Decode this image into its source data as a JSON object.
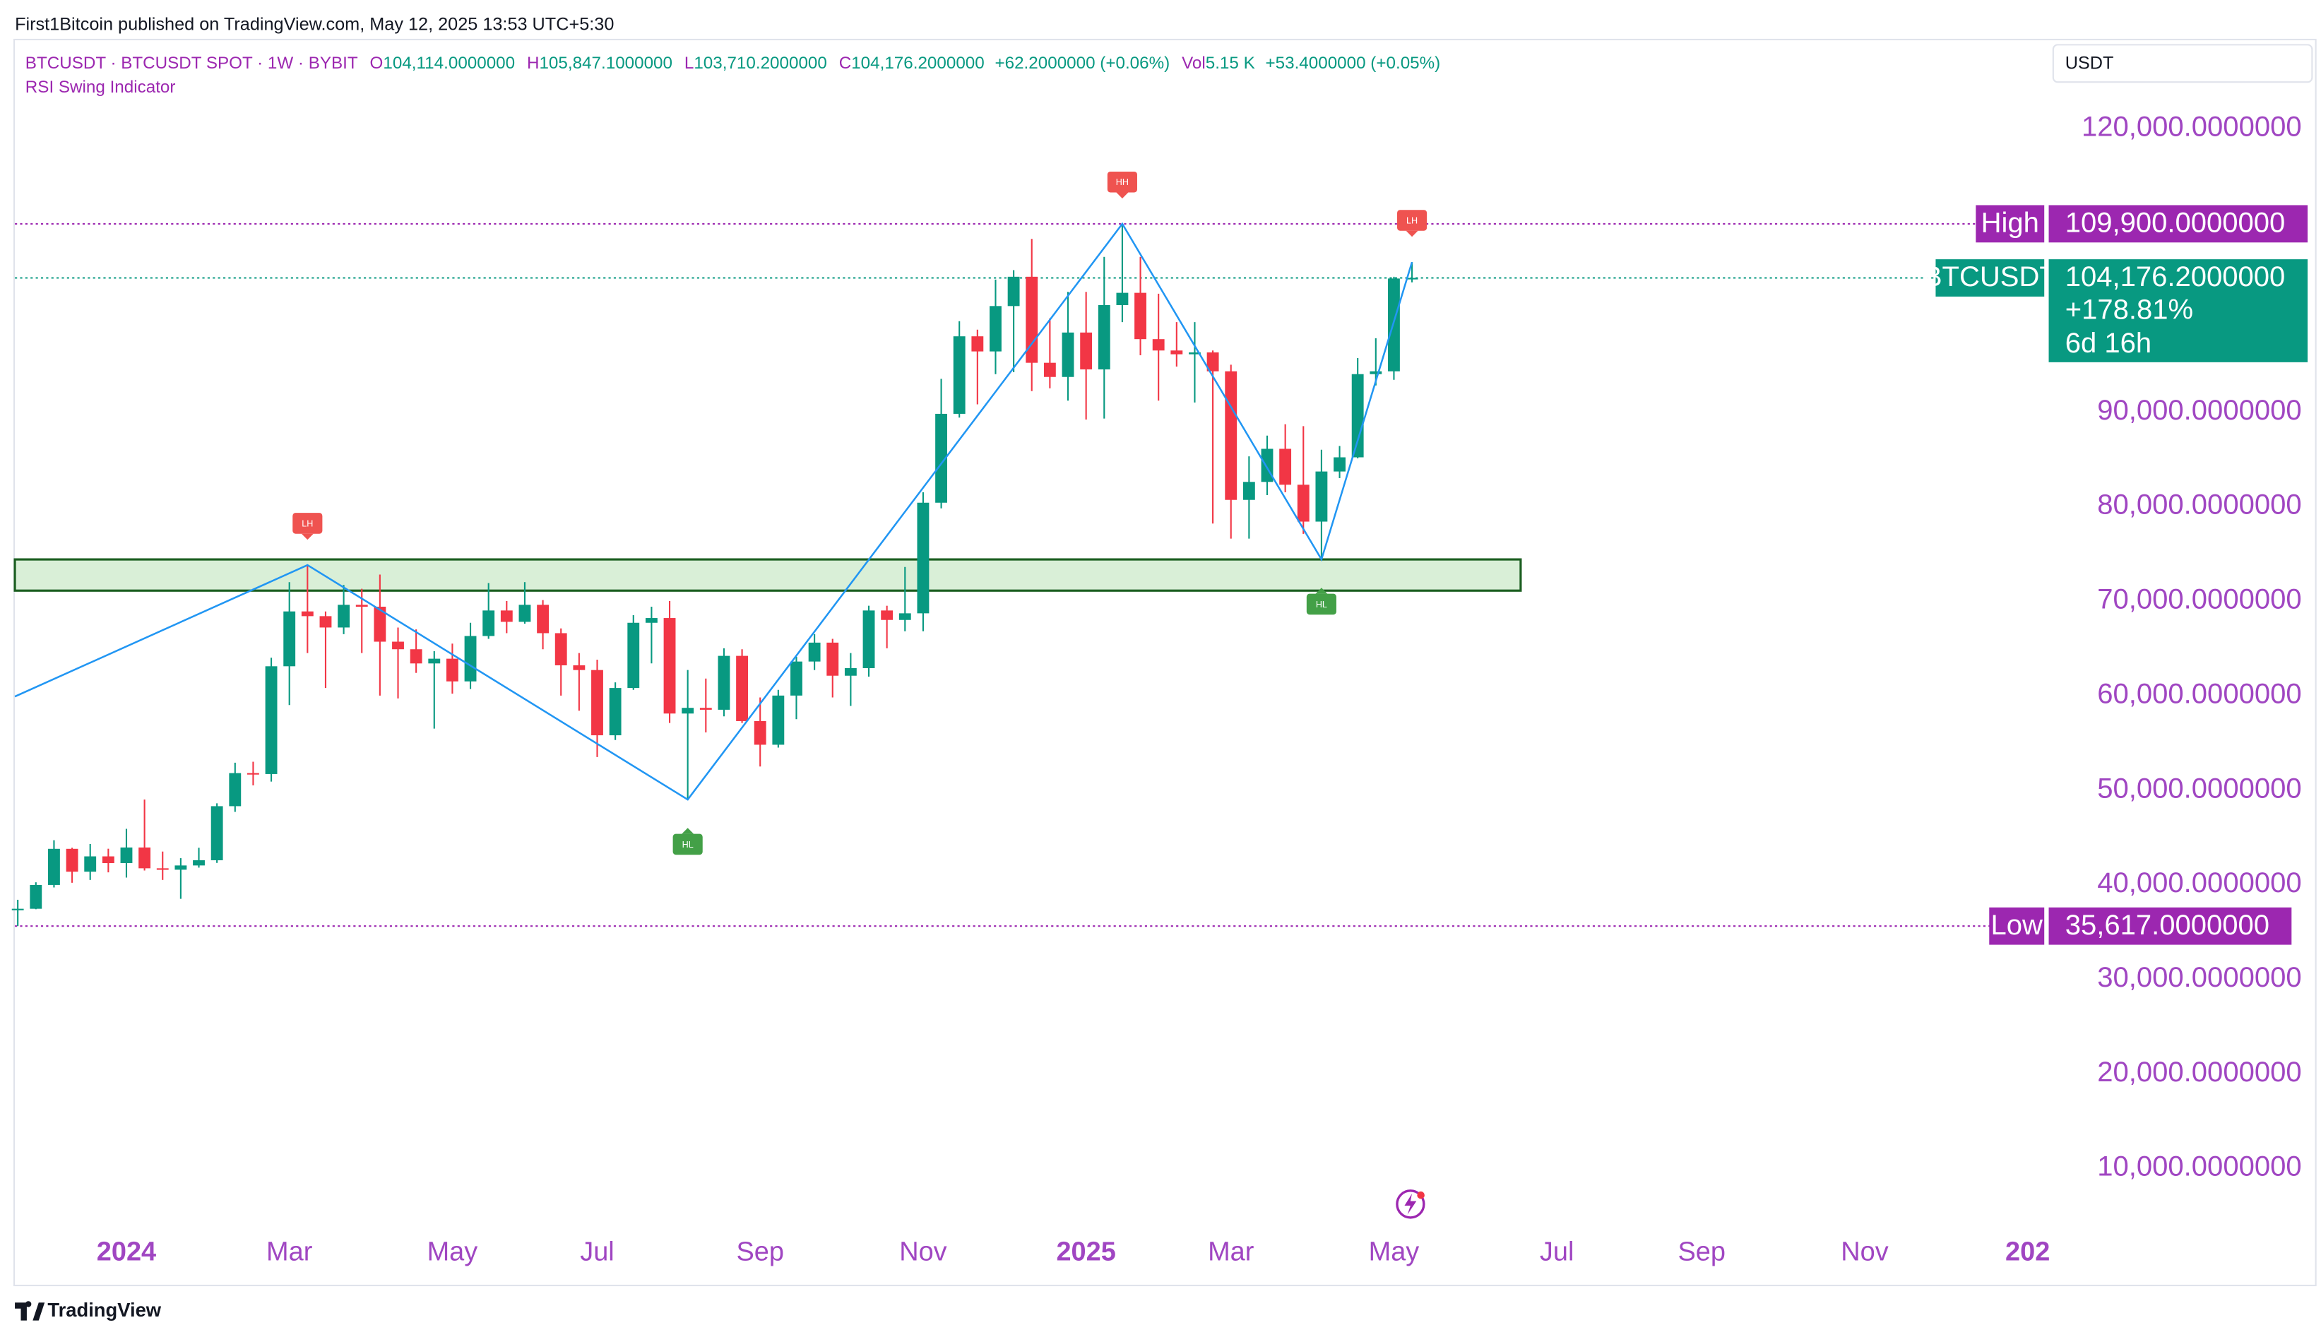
{
  "chart_data": {
    "type": "candlestick",
    "published": "First1Bitcoin published on TradingView.com, May 12, 2025 13:53 UTC+5:30",
    "symbol": "BTCUSDT · BTCUSDT SPOT · 1W · BYBIT",
    "legend": [
      {
        "key": "O",
        "value": "104,114.0000000"
      },
      {
        "key": "H",
        "value": "105,847.1000000"
      },
      {
        "key": "L",
        "value": "103,710.2000000"
      },
      {
        "key": "C",
        "value": "104,176.2000000"
      },
      {
        "value": "+62.2000000 (+0.06%)"
      },
      {
        "key": "Vol",
        "value": "5.15 K"
      },
      {
        "value": "+53.4000000 (+0.05%)"
      }
    ],
    "indicator": "RSI Swing Indicator",
    "currency": "USDT",
    "brand": "TradingView",
    "up_color": "#089981",
    "down_color": "#f23645",
    "x": [
      0,
      1,
      2,
      3,
      4,
      5,
      6,
      7,
      8,
      9,
      10,
      11,
      12,
      13,
      14,
      15,
      16,
      17,
      18,
      19,
      20,
      21,
      22,
      23,
      24,
      25,
      26,
      27,
      28,
      29,
      30,
      31,
      32,
      33,
      34,
      35,
      36,
      37,
      38,
      39,
      40,
      41,
      42,
      43,
      44,
      45,
      46,
      47,
      48,
      49,
      50,
      51,
      52,
      53,
      54,
      55,
      56,
      57,
      58,
      59,
      60,
      61,
      62,
      63,
      64,
      65,
      66,
      67,
      68,
      69,
      70,
      71,
      72,
      73,
      74,
      75,
      76,
      77
    ],
    "candles": [
      [
        37400,
        38400,
        35617,
        37450
      ],
      [
        37450,
        40250,
        37400,
        39970
      ],
      [
        39970,
        44700,
        39700,
        43790
      ],
      [
        43790,
        43900,
        40200,
        41370
      ],
      [
        41370,
        44300,
        40500,
        42990
      ],
      [
        42990,
        43800,
        41300,
        42280
      ],
      [
        42280,
        45900,
        40750,
        43930
      ],
      [
        43930,
        49000,
        41500,
        41730
      ],
      [
        41730,
        43500,
        40500,
        41580
      ],
      [
        41580,
        42800,
        38500,
        42030
      ],
      [
        42030,
        43900,
        41800,
        42580
      ],
      [
        42580,
        48600,
        42300,
        48300
      ],
      [
        48300,
        52900,
        47700,
        51800
      ],
      [
        51800,
        53000,
        50500,
        51700
      ],
      [
        51700,
        64000,
        50900,
        63100
      ],
      [
        63100,
        72000,
        59000,
        68900
      ],
      [
        68900,
        73800,
        64500,
        68400
      ],
      [
        68400,
        68900,
        60800,
        67200
      ],
      [
        67200,
        71700,
        66500,
        69600
      ],
      [
        69600,
        71300,
        64500,
        69400
      ],
      [
        69400,
        72800,
        60000,
        65700
      ],
      [
        65700,
        67200,
        59700,
        64900
      ],
      [
        64900,
        67000,
        62400,
        63400
      ],
      [
        63400,
        64700,
        56500,
        63900
      ],
      [
        63900,
        65500,
        60200,
        61500
      ],
      [
        61500,
        67700,
        60700,
        66300
      ],
      [
        66300,
        71900,
        66000,
        69000
      ],
      [
        69000,
        70000,
        66600,
        67800
      ],
      [
        67800,
        72000,
        67600,
        69600
      ],
      [
        69600,
        70100,
        64900,
        66600
      ],
      [
        66600,
        67100,
        60000,
        63200
      ],
      [
        63200,
        64500,
        58400,
        62700
      ],
      [
        62700,
        63800,
        53500,
        55800
      ],
      [
        55800,
        61400,
        55300,
        60800
      ],
      [
        60800,
        68500,
        60600,
        67700
      ],
      [
        67700,
        69400,
        63400,
        68200
      ],
      [
        68200,
        70000,
        57100,
        58100
      ],
      [
        58100,
        62700,
        49000,
        58700
      ],
      [
        58700,
        61800,
        56100,
        58500
      ],
      [
        58500,
        65000,
        57800,
        64200
      ],
      [
        64200,
        64900,
        57100,
        57300
      ],
      [
        57300,
        59800,
        52500,
        54800
      ],
      [
        54800,
        60600,
        54500,
        60000
      ],
      [
        60000,
        64100,
        57500,
        63600
      ],
      [
        63600,
        66500,
        62700,
        65600
      ],
      [
        65600,
        66000,
        59800,
        62100
      ],
      [
        62100,
        64500,
        58900,
        62900
      ],
      [
        62900,
        69500,
        62000,
        69000
      ],
      [
        69000,
        69500,
        65000,
        68000
      ],
      [
        68000,
        73600,
        66800,
        68700
      ],
      [
        68700,
        81500,
        66800,
        80400
      ],
      [
        80400,
        93500,
        79800,
        89800
      ],
      [
        89800,
        99600,
        89400,
        98000
      ],
      [
        98000,
        98700,
        90800,
        96400
      ],
      [
        96400,
        104000,
        94000,
        101200
      ],
      [
        101200,
        105000,
        94200,
        104300
      ],
      [
        104300,
        108300,
        92200,
        95200
      ],
      [
        95200,
        99900,
        92500,
        93700
      ],
      [
        93700,
        102700,
        91200,
        98400
      ],
      [
        98400,
        102700,
        89200,
        94500
      ],
      [
        94500,
        106400,
        89300,
        101300
      ],
      [
        101300,
        109900,
        99500,
        102600
      ],
      [
        102600,
        106400,
        96000,
        97700
      ],
      [
        97700,
        102500,
        91200,
        96500
      ],
      [
        96500,
        99500,
        94800,
        96100
      ],
      [
        96100,
        99500,
        91000,
        96300
      ],
      [
        96300,
        96500,
        78200,
        94300
      ],
      [
        94300,
        95000,
        76600,
        80700
      ],
      [
        80700,
        85300,
        76600,
        82600
      ],
      [
        82600,
        87500,
        81200,
        86100
      ],
      [
        86100,
        88700,
        81500,
        82300
      ],
      [
        82300,
        88500,
        77100,
        78400
      ],
      [
        78400,
        86000,
        74400,
        83700
      ],
      [
        83700,
        86400,
        83000,
        85200
      ],
      [
        85200,
        95700,
        85100,
        94000
      ],
      [
        94000,
        97800,
        92800,
        94300
      ],
      [
        94300,
        104300,
        93400,
        104114
      ],
      [
        104114,
        105847,
        103710,
        104176.2
      ]
    ],
    "swing": {
      "color": "#2196f3",
      "x": [
        -0.16,
        16,
        37,
        61,
        72,
        77
      ],
      "values": [
        59900,
        73800,
        49000,
        109900,
        74400,
        105847
      ]
    },
    "swing_labels": [
      {
        "text": "LH",
        "x": 16,
        "value": 73800,
        "position": "above"
      },
      {
        "text": "HL",
        "x": 37,
        "value": 49000,
        "position": "below"
      },
      {
        "text": "HH",
        "x": 61,
        "value": 109900,
        "position": "above"
      },
      {
        "text": "HL",
        "x": 72,
        "value": 74400,
        "position": "below"
      },
      {
        "text": "LH",
        "x": 77,
        "value": 105847,
        "position": "above"
      }
    ],
    "zone": {
      "top": 74400,
      "bottom": 71100,
      "x_end": 83,
      "fill": "#d9efd7",
      "stroke": "#1b5e20"
    },
    "levels": [
      {
        "name": "High",
        "value": 109900,
        "label": "109,900.0000000",
        "color": "#9c27b0"
      },
      {
        "name": "BTCUSDT",
        "value": 104176.2,
        "label": "104,176.2000000",
        "extra": [
          "+178.81%",
          "6d 16h"
        ],
        "color": "#089981"
      },
      {
        "name": "Low",
        "value": 35617,
        "label": "35,617.0000000",
        "color": "#9c27b0"
      }
    ],
    "xlim": [
      -0.16,
      112.0
    ],
    "xticks": [
      {
        "value": 6,
        "label": "2024"
      },
      {
        "value": 15,
        "label": "Mar"
      },
      {
        "value": 24,
        "label": "May"
      },
      {
        "value": 32,
        "label": "Jul"
      },
      {
        "value": 41,
        "label": "Sep"
      },
      {
        "value": 50,
        "label": "Nov"
      },
      {
        "value": 59,
        "label": "2025"
      },
      {
        "value": 67,
        "label": "Mar"
      },
      {
        "value": 76,
        "label": "May"
      },
      {
        "value": 85,
        "label": "Jul"
      },
      {
        "value": 93,
        "label": "Sep"
      },
      {
        "value": 102,
        "label": "Nov"
      },
      {
        "value": 111,
        "label": "202"
      }
    ],
    "ylim": [
      4470,
      129470
    ],
    "yticks": [
      {
        "value": 120000,
        "label": "120,000.0000000"
      },
      {
        "value": 90000,
        "label": "90,000.0000000"
      },
      {
        "value": 80000,
        "label": "80,000.0000000"
      },
      {
        "value": 70000,
        "label": "70,000.0000000"
      },
      {
        "value": 60000,
        "label": "60,000.0000000"
      },
      {
        "value": 50000,
        "label": "50,000.0000000"
      },
      {
        "value": 40000,
        "label": "40,000.0000000"
      },
      {
        "value": 30000,
        "label": "30,000.0000000"
      },
      {
        "value": 20000,
        "label": "20,000.0000000"
      },
      {
        "value": 10000,
        "label": "10,000.0000000"
      }
    ],
    "axis_color": "#a046c2"
  }
}
